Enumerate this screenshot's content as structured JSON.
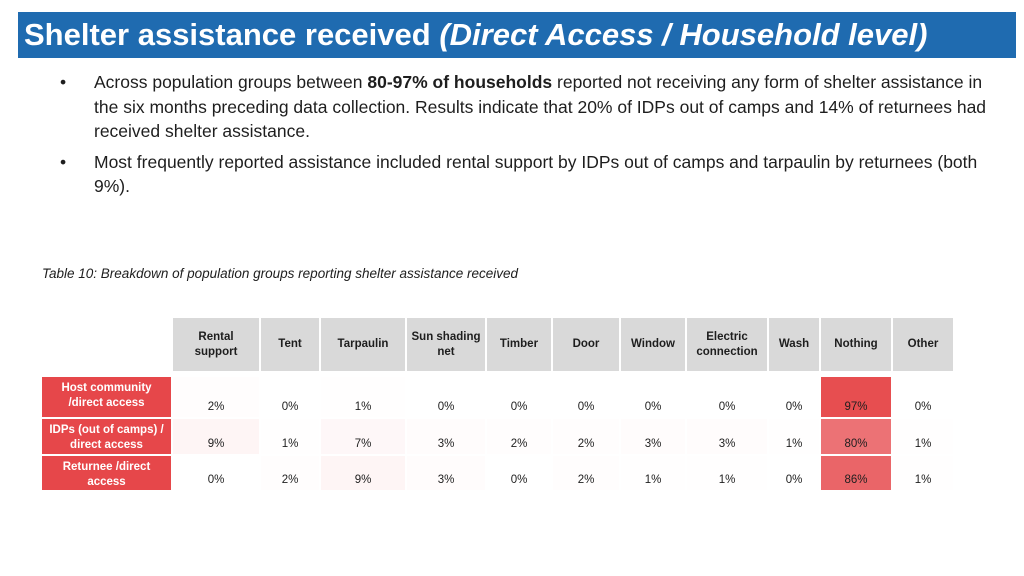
{
  "title": {
    "main": "Shelter assistance received",
    "sub": "(Direct Access / Household level)"
  },
  "bullets": [
    {
      "text_before": "Across population groups between ",
      "bold": "80-97% of households",
      "text_after": " reported not receiving any form of shelter assistance in the six months preceding data collection. Results indicate that 20% of IDPs out of camps and 14% of returnees had received shelter assistance."
    },
    {
      "text": "Most frequently reported assistance included rental support by IDPs out of camps and tarpaulin by returnees (both 9%)."
    }
  ],
  "bullet_glyph": "•",
  "caption": "Table 10: Breakdown of population groups reporting shelter assistance received",
  "table": {
    "columns": [
      "Rental support",
      "Tent",
      "Tarpaulin",
      "Sun shading net",
      "Timber",
      "Door",
      "Window",
      "Electric connection",
      "Wash",
      "Nothing",
      "Other"
    ],
    "rows": [
      {
        "label": "Host community /direct access",
        "values": [
          "2%",
          "0%",
          "1%",
          "0%",
          "0%",
          "0%",
          "0%",
          "0%",
          "0%",
          "97%",
          "0%"
        ],
        "nums": [
          2,
          0,
          1,
          0,
          0,
          0,
          0,
          0,
          0,
          97,
          0
        ]
      },
      {
        "label": "IDPs (out of camps) / direct access",
        "values": [
          "9%",
          "1%",
          "7%",
          "3%",
          "2%",
          "2%",
          "3%",
          "3%",
          "1%",
          "80%",
          "1%"
        ],
        "nums": [
          9,
          1,
          7,
          3,
          2,
          2,
          3,
          3,
          1,
          80,
          1
        ]
      },
      {
        "label": "Returnee /direct access",
        "values": [
          "0%",
          "2%",
          "9%",
          "3%",
          "0%",
          "2%",
          "1%",
          "1%",
          "0%",
          "86%",
          "1%"
        ],
        "nums": [
          0,
          2,
          9,
          3,
          0,
          2,
          1,
          1,
          0,
          86,
          1
        ]
      }
    ]
  },
  "colors": {
    "title_bg": "#1f6bb0",
    "header_bg": "#d9d9d9",
    "row_label_bg": "#e6474a",
    "heat_max": "#e6474a"
  }
}
